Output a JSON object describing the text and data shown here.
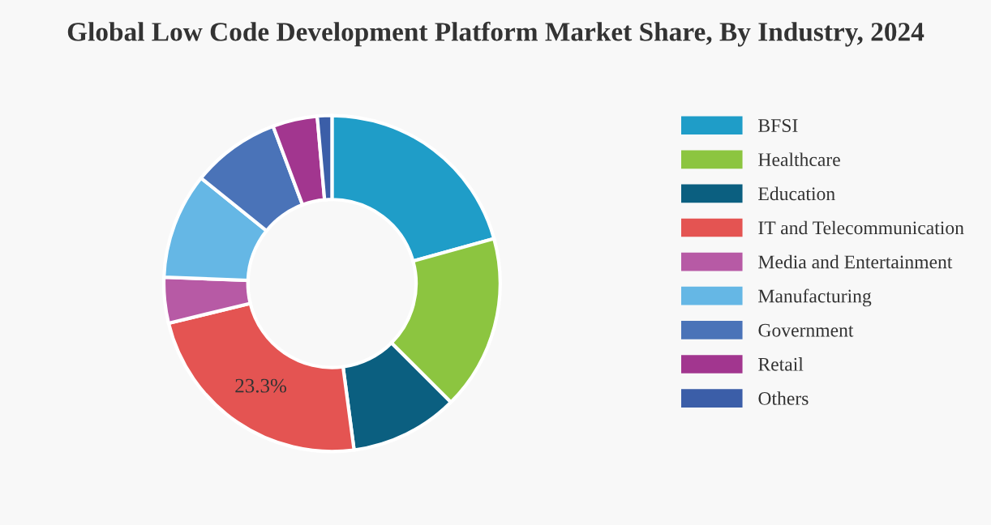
{
  "chart_data": {
    "type": "donut",
    "title": "Global Low Code Development Platform Market Share, By Industry, 2024",
    "categories": [
      "BFSI",
      "Healthcare",
      "Education",
      "IT and Telecommunication",
      "Media and Entertainment",
      "Manufacturing",
      "Government",
      "Retail",
      "Others"
    ],
    "values": [
      20.7,
      16.8,
      10.4,
      23.3,
      4.4,
      10.2,
      8.5,
      4.3,
      1.4
    ],
    "colors": [
      "#1f9dc8",
      "#8cc540",
      "#0b5f80",
      "#e45452",
      "#b75aa5",
      "#65b7e5",
      "#4a73b8",
      "#a2368f",
      "#3b5ea8"
    ],
    "value_labels": [
      null,
      null,
      null,
      "23.3%",
      null,
      null,
      null,
      null,
      null
    ],
    "legend": "right"
  }
}
